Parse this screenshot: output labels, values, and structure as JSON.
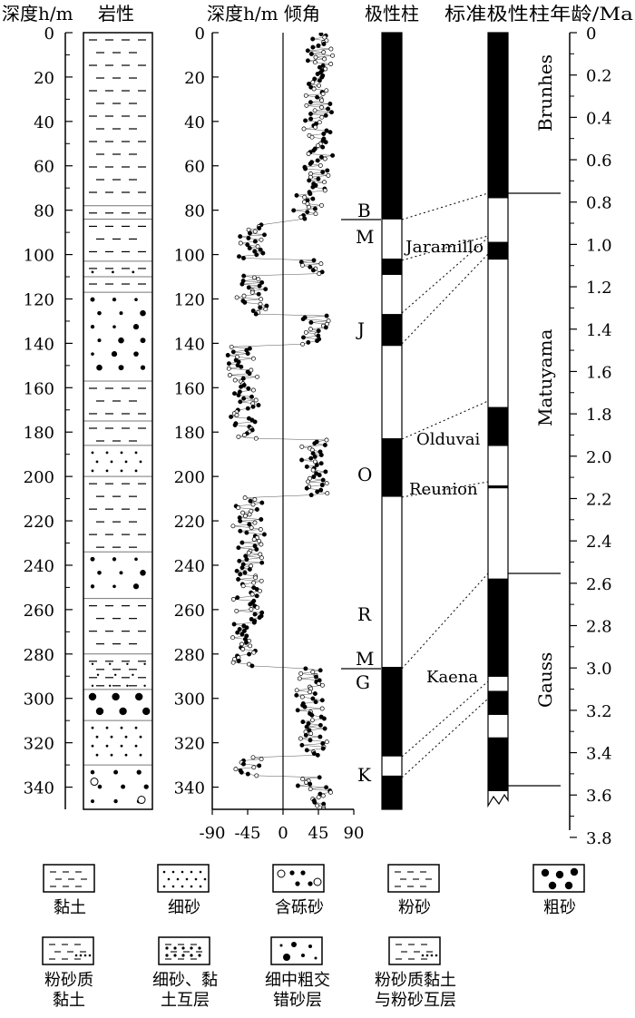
{
  "headers": {
    "depth": "深度h/m",
    "lith": "岩性",
    "incl": "深度h/m 倾角",
    "polarity": "极性柱",
    "std": "标准极性柱年龄/Ma"
  },
  "depth_ticks": [
    0,
    20,
    40,
    60,
    80,
    100,
    120,
    140,
    160,
    180,
    200,
    220,
    240,
    260,
    280,
    300,
    320,
    340
  ],
  "age_ticks": [
    "0",
    "0.2",
    "0.4",
    "0.6",
    "0.8",
    "1.0",
    "1.2",
    "1.4",
    "1.6",
    "1.8",
    "2.0",
    "2.2",
    "2.4",
    "2.6",
    "2.8",
    "3.0",
    "3.2",
    "3.4",
    "3.6",
    "3.8"
  ],
  "incl_ticks": [
    "-90",
    "-45",
    "0",
    "45",
    "90"
  ],
  "chron_labels": [
    "Brunhes",
    "Matuyama",
    "Gauss"
  ],
  "subchron_labels": [
    "Jaramillo",
    "Olduvai",
    "Reunion",
    "Kaena"
  ],
  "boundary_labels": [
    "B",
    "M",
    "J",
    "O",
    "R",
    "M",
    "G",
    "K"
  ],
  "legend": [
    {
      "label": "黏土",
      "pattern": "clay"
    },
    {
      "label": "细砂",
      "pattern": "fine-sand"
    },
    {
      "label": "含砾砂",
      "pattern": "gravel-sand"
    },
    {
      "label": "粉砂",
      "pattern": "silt"
    },
    {
      "label": "粗砂",
      "pattern": "coarse-sand"
    },
    {
      "label": "粉砂质\n黏土",
      "pattern": "silty-clay"
    },
    {
      "label": "细砂、黏\n土互层",
      "pattern": "sand-clay"
    },
    {
      "label": "细中粗交\n错砂层",
      "pattern": "mixed-sand"
    },
    {
      "label": "粉砂质黏土\n与粉砂互层",
      "pattern": "silty-silt"
    }
  ],
  "chart_data": {
    "type": "scatter",
    "ylabel": "深度h/m",
    "xlabel": "倾角",
    "ylim": [
      0,
      350
    ],
    "xlim": [
      -90,
      90
    ],
    "inclination_clusters": [
      {
        "d0": 0,
        "d1": 72,
        "mean": 45
      },
      {
        "d0": 72,
        "d1": 84,
        "mean": 30
      },
      {
        "d0": 86,
        "d1": 102,
        "mean": -40
      },
      {
        "d0": 102,
        "d1": 109,
        "mean": 40
      },
      {
        "d0": 109,
        "d1": 127,
        "mean": -40
      },
      {
        "d0": 127,
        "d1": 141,
        "mean": 42
      },
      {
        "d0": 141,
        "d1": 183,
        "mean": -50
      },
      {
        "d0": 183,
        "d1": 209,
        "mean": 42
      },
      {
        "d0": 209,
        "d1": 286,
        "mean": -45
      },
      {
        "d0": 286,
        "d1": 326,
        "mean": 38
      },
      {
        "d0": 326,
        "d1": 335,
        "mean": -40
      },
      {
        "d0": 335,
        "d1": 350,
        "mean": 40
      }
    ],
    "polarity_column": [
      {
        "d0": 0,
        "d1": 84,
        "normal": true
      },
      {
        "d0": 84,
        "d1": 102,
        "normal": false
      },
      {
        "d0": 102,
        "d1": 109,
        "normal": true
      },
      {
        "d0": 109,
        "d1": 127,
        "normal": false
      },
      {
        "d0": 127,
        "d1": 141,
        "normal": true
      },
      {
        "d0": 141,
        "d1": 183,
        "normal": false
      },
      {
        "d0": 183,
        "d1": 209,
        "normal": true
      },
      {
        "d0": 209,
        "d1": 286,
        "normal": false
      },
      {
        "d0": 286,
        "d1": 326,
        "normal": true
      },
      {
        "d0": 326,
        "d1": 335,
        "normal": false
      },
      {
        "d0": 335,
        "d1": 350,
        "normal": true
      }
    ],
    "standard_column_ma": [
      {
        "a0": 0,
        "a1": 0.78,
        "normal": true
      },
      {
        "a0": 0.78,
        "a1": 0.99,
        "normal": false
      },
      {
        "a0": 0.99,
        "a1": 1.07,
        "normal": true
      },
      {
        "a0": 1.07,
        "a1": 1.77,
        "normal": false
      },
      {
        "a0": 1.77,
        "a1": 1.95,
        "normal": true
      },
      {
        "a0": 1.95,
        "a1": 2.14,
        "normal": false
      },
      {
        "a0": 2.14,
        "a1": 2.15,
        "normal": true
      },
      {
        "a0": 2.15,
        "a1": 2.58,
        "normal": false
      },
      {
        "a0": 2.58,
        "a1": 3.04,
        "normal": true
      },
      {
        "a0": 3.04,
        "a1": 3.11,
        "normal": false
      },
      {
        "a0": 3.11,
        "a1": 3.22,
        "normal": true
      },
      {
        "a0": 3.22,
        "a1": 3.33,
        "normal": false
      },
      {
        "a0": 3.33,
        "a1": 3.58,
        "normal": true
      }
    ],
    "lithology": [
      {
        "d0": 0,
        "d1": 78,
        "pattern": "clay"
      },
      {
        "d0": 78,
        "d1": 84,
        "pattern": "silty-clay"
      },
      {
        "d0": 84,
        "d1": 103,
        "pattern": "clay"
      },
      {
        "d0": 103,
        "d1": 110,
        "pattern": "silty-clay"
      },
      {
        "d0": 110,
        "d1": 117,
        "pattern": "clay"
      },
      {
        "d0": 117,
        "d1": 157,
        "pattern": "mixed-sand"
      },
      {
        "d0": 157,
        "d1": 175,
        "pattern": "clay"
      },
      {
        "d0": 175,
        "d1": 186,
        "pattern": "clay"
      },
      {
        "d0": 186,
        "d1": 200,
        "pattern": "fine-sand"
      },
      {
        "d0": 200,
        "d1": 234,
        "pattern": "clay"
      },
      {
        "d0": 234,
        "d1": 255,
        "pattern": "mixed-sand"
      },
      {
        "d0": 255,
        "d1": 280,
        "pattern": "clay"
      },
      {
        "d0": 280,
        "d1": 296,
        "pattern": "sand-clay"
      },
      {
        "d0": 296,
        "d1": 310,
        "pattern": "coarse-sand"
      },
      {
        "d0": 310,
        "d1": 330,
        "pattern": "fine-sand"
      },
      {
        "d0": 330,
        "d1": 350,
        "pattern": "gravel-sand"
      }
    ]
  }
}
